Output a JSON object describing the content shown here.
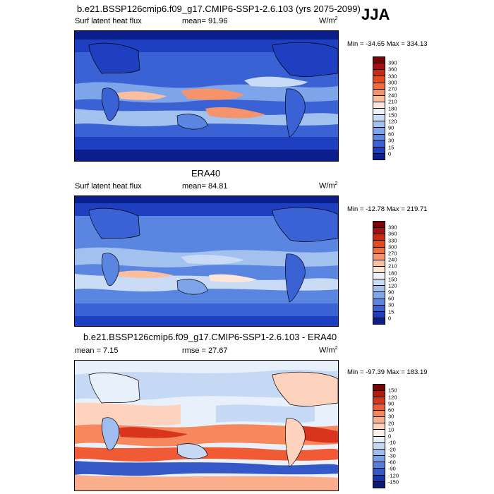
{
  "season": "JJA",
  "panels": [
    {
      "id": "model",
      "title": "b.e21.BSSP126cmip6.f09_g17.CMIP6-SSP1-2.6.103 (yrs 2075-2099)",
      "left_label": "Surf latent heat flux",
      "center_label": "mean=  91.96",
      "units": "W/m",
      "units_sup": "2",
      "minmax": "Min = -34.65 Max = 334.13",
      "colorbar": {
        "labels": [
          "390",
          "360",
          "330",
          "300",
          "270",
          "240",
          "210",
          "180",
          "150",
          "120",
          "90",
          "60",
          "30",
          "15",
          "0"
        ],
        "colors": [
          "#7a0403",
          "#a50f15",
          "#cb2a10",
          "#e64a19",
          "#f26b3a",
          "#f7936b",
          "#fbbfa0",
          "#fde6d8",
          "#eef3fb",
          "#c9dbf5",
          "#a3c1ef",
          "#7ea5ea",
          "#5a86e1",
          "#3a62d4",
          "#1e3fbf",
          "#0a1e8c"
        ]
      }
    },
    {
      "id": "obs",
      "title": "ERA40",
      "left_label": "Surf latent heat flux",
      "center_label": "mean=  84.81",
      "units": "W/m",
      "units_sup": "2",
      "minmax": "Min = -12.78 Max = 219.71",
      "colorbar": {
        "labels": [
          "390",
          "360",
          "330",
          "300",
          "270",
          "240",
          "210",
          "180",
          "150",
          "120",
          "90",
          "60",
          "30",
          "15",
          "0"
        ],
        "colors": [
          "#7a0403",
          "#a50f15",
          "#cb2a10",
          "#e64a19",
          "#f26b3a",
          "#f7936b",
          "#fbbfa0",
          "#fde6d8",
          "#eef3fb",
          "#c9dbf5",
          "#a3c1ef",
          "#7ea5ea",
          "#5a86e1",
          "#3a62d4",
          "#1e3fbf",
          "#0a1e8c"
        ]
      }
    },
    {
      "id": "diff",
      "title": "b.e21.BSSP126cmip6.f09_g17.CMIP6-SSP1-2.6.103 - ERA40",
      "left_label": "mean =   7.15",
      "center_label": "rmse =  27.67",
      "units": "W/m",
      "units_sup": "2",
      "minmax": "Min = -97.39 Max = 183.19",
      "colorbar": {
        "labels": [
          "150",
          "120",
          "90",
          "60",
          "30",
          "20",
          "10",
          "0",
          "-10",
          "-20",
          "-30",
          "-60",
          "-90",
          "-120",
          "-150"
        ],
        "colors": [
          "#7a0403",
          "#b31b0f",
          "#d9351c",
          "#f05a34",
          "#f7875d",
          "#fbae8c",
          "#fdd3bd",
          "#fdf0e8",
          "#e8f0fb",
          "#c5d8f4",
          "#9fbdee",
          "#7a9fe6",
          "#557ddb",
          "#3558c8",
          "#1a35a8",
          "#0a1a7a"
        ]
      }
    }
  ]
}
